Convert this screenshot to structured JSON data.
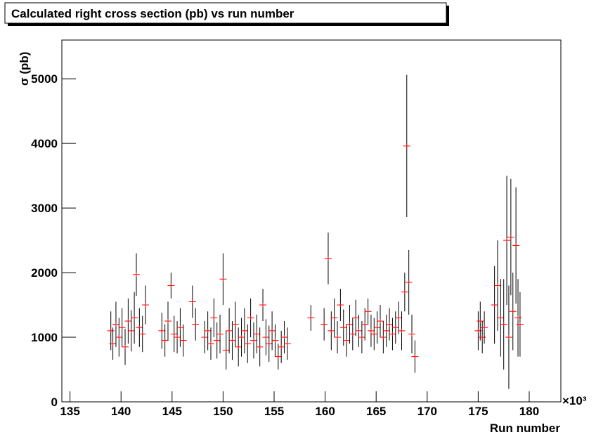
{
  "chart_data": {
    "type": "scatter",
    "title": "Calculated right cross section (pb) vs run number",
    "x_label": "Run number",
    "y_label": "σ (pb)",
    "x_multiplier": "×10³",
    "xlim": [
      134.2,
      183.1
    ],
    "ylim": [
      0,
      5600
    ],
    "xticks": [
      135,
      140,
      145,
      150,
      155,
      160,
      165,
      170,
      175,
      180
    ],
    "yticks": [
      0,
      1000,
      2000,
      3000,
      4000,
      5000
    ],
    "marker_color": "#ff0000",
    "error_color": "#000000",
    "x": [
      139.0,
      139.2,
      139.5,
      139.8,
      140.1,
      140.4,
      140.7,
      141.0,
      141.3,
      141.5,
      141.8,
      142.1,
      142.4,
      144.0,
      144.3,
      144.6,
      144.9,
      145.2,
      145.5,
      145.8,
      146.1,
      147.0,
      147.3,
      148.2,
      148.5,
      148.8,
      149.1,
      149.4,
      149.7,
      150.0,
      150.3,
      150.6,
      150.9,
      151.2,
      151.5,
      151.8,
      152.1,
      152.4,
      152.7,
      153.0,
      153.3,
      153.6,
      153.9,
      154.2,
      154.5,
      154.8,
      155.1,
      155.4,
      155.7,
      156.0,
      156.3,
      158.6,
      159.9,
      160.3,
      160.6,
      160.9,
      161.2,
      161.5,
      161.8,
      162.1,
      162.4,
      162.7,
      163.0,
      163.3,
      163.6,
      163.9,
      164.2,
      164.5,
      164.8,
      165.1,
      165.4,
      165.7,
      166.0,
      166.3,
      166.6,
      166.9,
      167.2,
      167.5,
      167.8,
      168.0,
      168.2,
      168.5,
      168.8,
      175.0,
      175.2,
      175.4,
      175.6,
      176.6,
      176.9,
      177.2,
      177.5,
      177.8,
      178.0,
      178.2,
      178.4,
      178.7,
      178.9,
      179.1
    ],
    "values": [
      1100,
      900,
      1200,
      1000,
      1150,
      850,
      1250,
      1100,
      1300,
      1970,
      1150,
      1050,
      1500,
      1100,
      950,
      1250,
      1800,
      1050,
      1000,
      1150,
      950,
      1550,
      1200,
      1000,
      1100,
      900,
      1300,
      950,
      1050,
      1900,
      800,
      1100,
      950,
      1200,
      850,
      1000,
      1100,
      900,
      1300,
      950,
      1050,
      850,
      1500,
      1000,
      900,
      1100,
      950,
      700,
      850,
      1000,
      900,
      1300,
      1200,
      2220,
      1100,
      1300,
      1000,
      1500,
      1150,
      950,
      1200,
      1050,
      1300,
      1100,
      1000,
      1200,
      1400,
      1100,
      1050,
      1150,
      1250,
      1000,
      1100,
      1200,
      1050,
      1150,
      1300,
      1100,
      1700,
      3960,
      1850,
      1050,
      700,
      1100,
      1250,
      1000,
      1150,
      1500,
      1800,
      1300,
      1200,
      2500,
      1000,
      2550,
      1400,
      2420,
      1300,
      1200
    ],
    "errors": [
      300,
      250,
      350,
      300,
      300,
      280,
      350,
      320,
      400,
      330,
      300,
      280,
      300,
      280,
      250,
      300,
      200,
      280,
      250,
      300,
      250,
      250,
      250,
      250,
      300,
      250,
      300,
      280,
      300,
      400,
      300,
      350,
      300,
      350,
      300,
      300,
      350,
      300,
      300,
      280,
      300,
      300,
      250,
      280,
      280,
      300,
      250,
      200,
      250,
      250,
      250,
      200,
      250,
      400,
      300,
      300,
      250,
      250,
      280,
      250,
      300,
      250,
      280,
      250,
      250,
      250,
      200,
      250,
      250,
      250,
      250,
      250,
      250,
      250,
      250,
      250,
      250,
      300,
      300,
      1100,
      500,
      300,
      250,
      300,
      300,
      250,
      250,
      600,
      700,
      600,
      700,
      1000,
      800,
      900,
      600,
      900,
      600,
      500
    ]
  }
}
